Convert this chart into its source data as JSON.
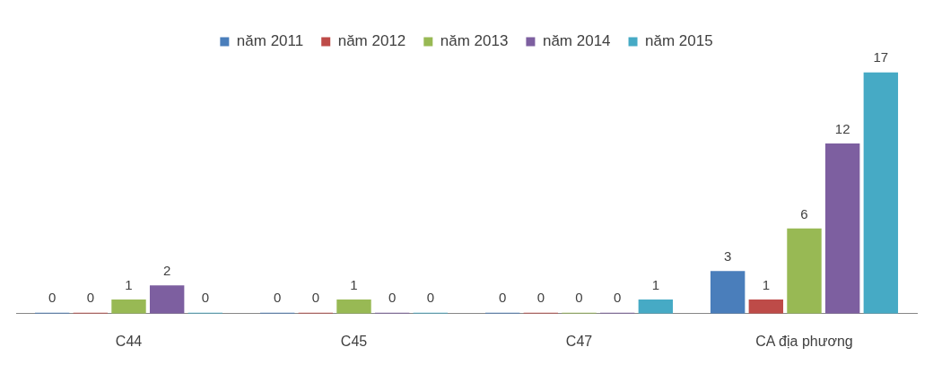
{
  "chart_data": {
    "type": "bar",
    "categories": [
      "C44",
      "C45",
      "C47",
      "CA địa phương"
    ],
    "series": [
      {
        "name": "năm 2011",
        "color": "#4a7ebb",
        "values": [
          0,
          0,
          0,
          3
        ]
      },
      {
        "name": "năm 2012",
        "color": "#be4b48",
        "values": [
          0,
          0,
          0,
          1
        ]
      },
      {
        "name": "năm 2013",
        "color": "#98b954",
        "values": [
          1,
          1,
          0,
          6
        ]
      },
      {
        "name": "năm 2014",
        "color": "#7d5fa0",
        "values": [
          2,
          0,
          0,
          12
        ]
      },
      {
        "name": "năm 2015",
        "color": "#46aac5",
        "values": [
          0,
          0,
          1,
          17
        ]
      }
    ],
    "data_labels": true,
    "legend": "top",
    "grid": false
  }
}
